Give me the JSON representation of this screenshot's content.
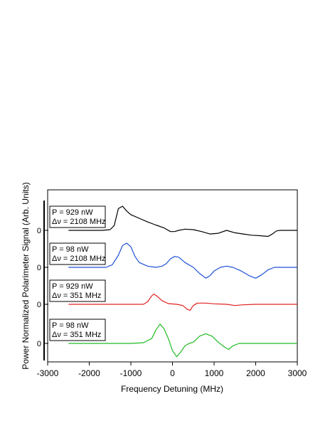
{
  "chart_data": {
    "type": "line",
    "xlabel": "Frequency Detuning (MHz)",
    "ylabel": "Power Normalized Polarimeter Signal (Arb. Units)",
    "xlim": [
      -3000,
      3000
    ],
    "xticks": [
      -3000,
      -2000,
      -1000,
      0,
      1000,
      2000,
      3000
    ],
    "x_tick_labels": [
      "-3000",
      "-2000",
      "-1000",
      "0",
      "1000",
      "2000",
      "3000"
    ],
    "grid": false,
    "legend": "none",
    "note": "Vertically offset traces, each with its own zero baseline labeled 0 on the left axis; values are in arbitrary units relative to that baseline.",
    "series": [
      {
        "label_lines": [
          "P = 929 nW",
          "Δν = 2108 MHz"
        ],
        "baseline_label": "0",
        "color": "#000000",
        "points": [
          [
            -2500,
            0
          ],
          [
            -1700,
            0
          ],
          [
            -1500,
            0.03
          ],
          [
            -1400,
            0.2
          ],
          [
            -1300,
            0.9
          ],
          [
            -1200,
            1.0
          ],
          [
            -1100,
            0.8
          ],
          [
            -1000,
            0.65
          ],
          [
            -800,
            0.5
          ],
          [
            -600,
            0.35
          ],
          [
            -400,
            0.22
          ],
          [
            -200,
            0.1
          ],
          [
            -50,
            -0.05
          ],
          [
            50,
            -0.05
          ],
          [
            150,
            0.0
          ],
          [
            300,
            0.05
          ],
          [
            500,
            0.03
          ],
          [
            700,
            -0.05
          ],
          [
            900,
            -0.15
          ],
          [
            1100,
            -0.12
          ],
          [
            1300,
            0.0
          ],
          [
            1500,
            -0.1
          ],
          [
            1700,
            -0.15
          ],
          [
            1900,
            -0.2
          ],
          [
            2100,
            -0.22
          ],
          [
            2300,
            -0.25
          ],
          [
            2400,
            -0.15
          ],
          [
            2500,
            -0.02
          ],
          [
            2600,
            0.0
          ],
          [
            3000,
            0.0
          ]
        ]
      },
      {
        "label_lines": [
          "P = 98 nW",
          "Δν = 2108 MHz"
        ],
        "baseline_label": "0",
        "color": "#1f4fd8",
        "points": [
          [
            -2500,
            0
          ],
          [
            -1600,
            0
          ],
          [
            -1450,
            0.1
          ],
          [
            -1300,
            0.5
          ],
          [
            -1200,
            0.9
          ],
          [
            -1100,
            1.0
          ],
          [
            -1000,
            0.85
          ],
          [
            -900,
            0.45
          ],
          [
            -800,
            0.2
          ],
          [
            -600,
            0.05
          ],
          [
            -400,
            0.0
          ],
          [
            -250,
            0.05
          ],
          [
            -150,
            0.15
          ],
          [
            -50,
            0.35
          ],
          [
            50,
            0.45
          ],
          [
            150,
            0.42
          ],
          [
            300,
            0.2
          ],
          [
            500,
            0.0
          ],
          [
            650,
            -0.25
          ],
          [
            800,
            -0.45
          ],
          [
            900,
            -0.35
          ],
          [
            1000,
            -0.15
          ],
          [
            1150,
            0.0
          ],
          [
            1300,
            0.05
          ],
          [
            1450,
            0.0
          ],
          [
            1650,
            -0.15
          ],
          [
            1850,
            -0.35
          ],
          [
            2000,
            -0.45
          ],
          [
            2150,
            -0.3
          ],
          [
            2300,
            -0.1
          ],
          [
            2450,
            0.0
          ],
          [
            2600,
            0.0
          ],
          [
            3000,
            0.0
          ]
        ]
      },
      {
        "label_lines": [
          "P = 929 nW",
          "Δν = 351 MHz"
        ],
        "baseline_label": "0",
        "color": "#e02020",
        "points": [
          [
            -2500,
            0
          ],
          [
            -700,
            0
          ],
          [
            -600,
            0.1
          ],
          [
            -500,
            0.35
          ],
          [
            -450,
            0.42
          ],
          [
            -380,
            0.35
          ],
          [
            -250,
            0.15
          ],
          [
            -100,
            0.03
          ],
          [
            100,
            0.0
          ],
          [
            250,
            -0.05
          ],
          [
            350,
            -0.2
          ],
          [
            420,
            -0.25
          ],
          [
            500,
            -0.05
          ],
          [
            600,
            0.05
          ],
          [
            800,
            0.05
          ],
          [
            1000,
            0.02
          ],
          [
            1300,
            0.0
          ],
          [
            1500,
            -0.05
          ],
          [
            1700,
            -0.02
          ],
          [
            2000,
            0.0
          ],
          [
            3000,
            0.0
          ]
        ]
      },
      {
        "label_lines": [
          "P = 98 nW",
          "Δν = 351 MHz"
        ],
        "baseline_label": "0",
        "color": "#22bb22",
        "points": [
          [
            -2500,
            0
          ],
          [
            -1000,
            0
          ],
          [
            -700,
            0.03
          ],
          [
            -500,
            0.2
          ],
          [
            -400,
            0.55
          ],
          [
            -300,
            0.8
          ],
          [
            -200,
            0.6
          ],
          [
            -100,
            0.2
          ],
          [
            0,
            -0.3
          ],
          [
            100,
            -0.55
          ],
          [
            200,
            -0.35
          ],
          [
            300,
            -0.1
          ],
          [
            400,
            0.0
          ],
          [
            500,
            0.05
          ],
          [
            650,
            0.3
          ],
          [
            800,
            0.4
          ],
          [
            950,
            0.3
          ],
          [
            1100,
            0.05
          ],
          [
            1250,
            -0.15
          ],
          [
            1350,
            -0.25
          ],
          [
            1450,
            -0.1
          ],
          [
            1600,
            0.0
          ],
          [
            2000,
            0.0
          ],
          [
            3000,
            0.0
          ]
        ]
      }
    ]
  }
}
